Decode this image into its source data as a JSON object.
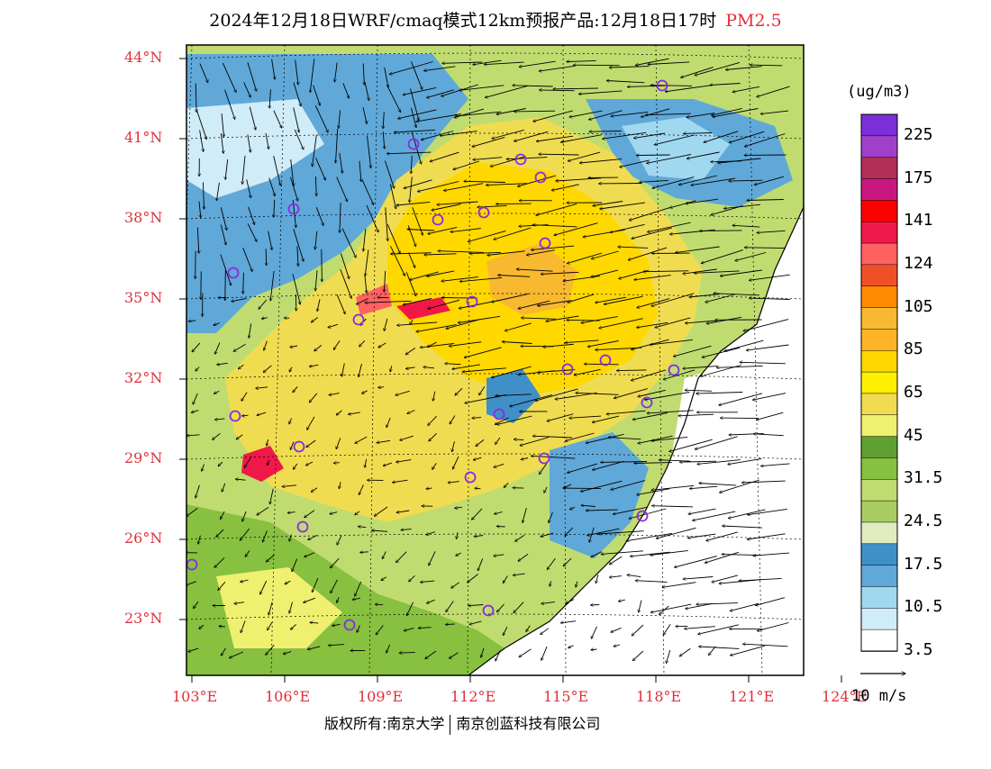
{
  "title": {
    "main": "2024年12月18日WRF/cmaq模式12km预报产品:12月18日17时",
    "variable": "PM2.5"
  },
  "map": {
    "lat_ticks": [
      "44°N",
      "41°N",
      "38°N",
      "35°N",
      "32°N",
      "29°N",
      "26°N",
      "23°N"
    ],
    "lon_ticks": [
      "103°E",
      "106°E",
      "109°E",
      "112°E",
      "115°E",
      "118°E",
      "121°E",
      "124°E"
    ],
    "city_marker_color": "#8a2be2"
  },
  "colorbar": {
    "unit": "(ug/m3)",
    "labels": [
      "225",
      "175",
      "141",
      "124",
      "105",
      "85",
      "65",
      "45",
      "31.5",
      "24.5",
      "17.5",
      "10.5",
      "3.5"
    ],
    "colors": [
      "#7b2fd8",
      "#a040c8",
      "#b0305a",
      "#c81880",
      "#ff0000",
      "#f01848",
      "#ff6060",
      "#f05028",
      "#ff8c00",
      "#f8b830",
      "#ffb428",
      "#ffd800",
      "#fff000",
      "#f0dc50",
      "#f0f070",
      "#60a030",
      "#88c040",
      "#c0dc70",
      "#a8cc60",
      "#e0ecc0",
      "#4090c8",
      "#60a8d8",
      "#a0d8f0",
      "#d0ecf8",
      "#ffffff"
    ]
  },
  "wind_reference": {
    "label": "10 m/s"
  },
  "footer": {
    "copyright": "版权所有:南京大学",
    "company": "南京创蓝科技有限公司"
  }
}
